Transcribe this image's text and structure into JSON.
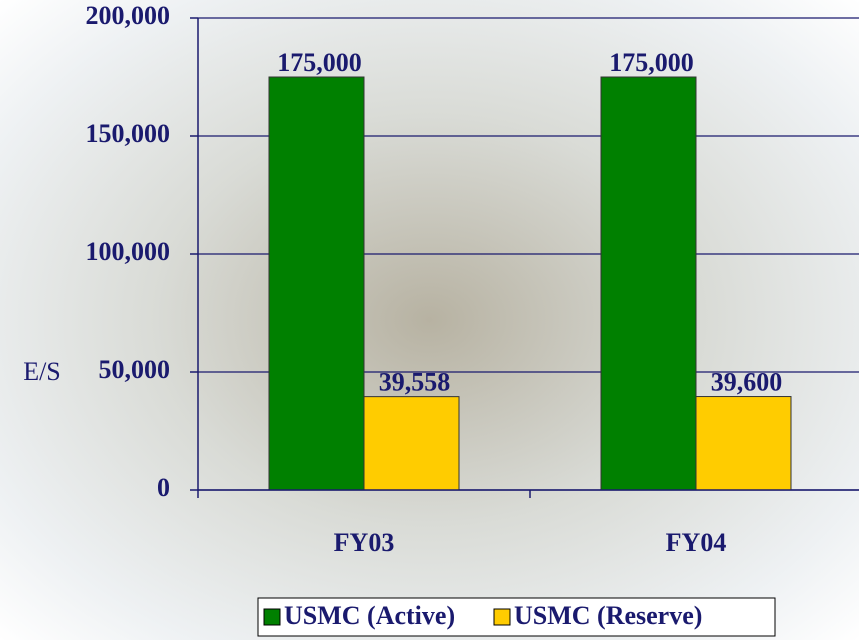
{
  "chart_data": {
    "type": "bar",
    "y_label": "E/S",
    "categories": [
      "FY03",
      "FY04"
    ],
    "series": [
      {
        "name": "USMC (Active)",
        "color": "#008000",
        "values": [
          175000,
          175000
        ],
        "value_labels": [
          "175,000",
          "175,000"
        ]
      },
      {
        "name": "USMC (Reserve)",
        "color": "#ffcc00",
        "values": [
          39558,
          39600
        ],
        "value_labels": [
          "39,558",
          "39,600"
        ]
      }
    ],
    "ylim": [
      0,
      200000
    ],
    "yticks": [
      0,
      {
        "value": 50000,
        "label": "50,000"
      },
      {
        "value": 100000,
        "label": "100,000"
      },
      {
        "value": 150000,
        "label": "150,000"
      },
      {
        "value": 200000,
        "label": "200,000"
      }
    ],
    "grid": true,
    "legend": "bottom"
  }
}
